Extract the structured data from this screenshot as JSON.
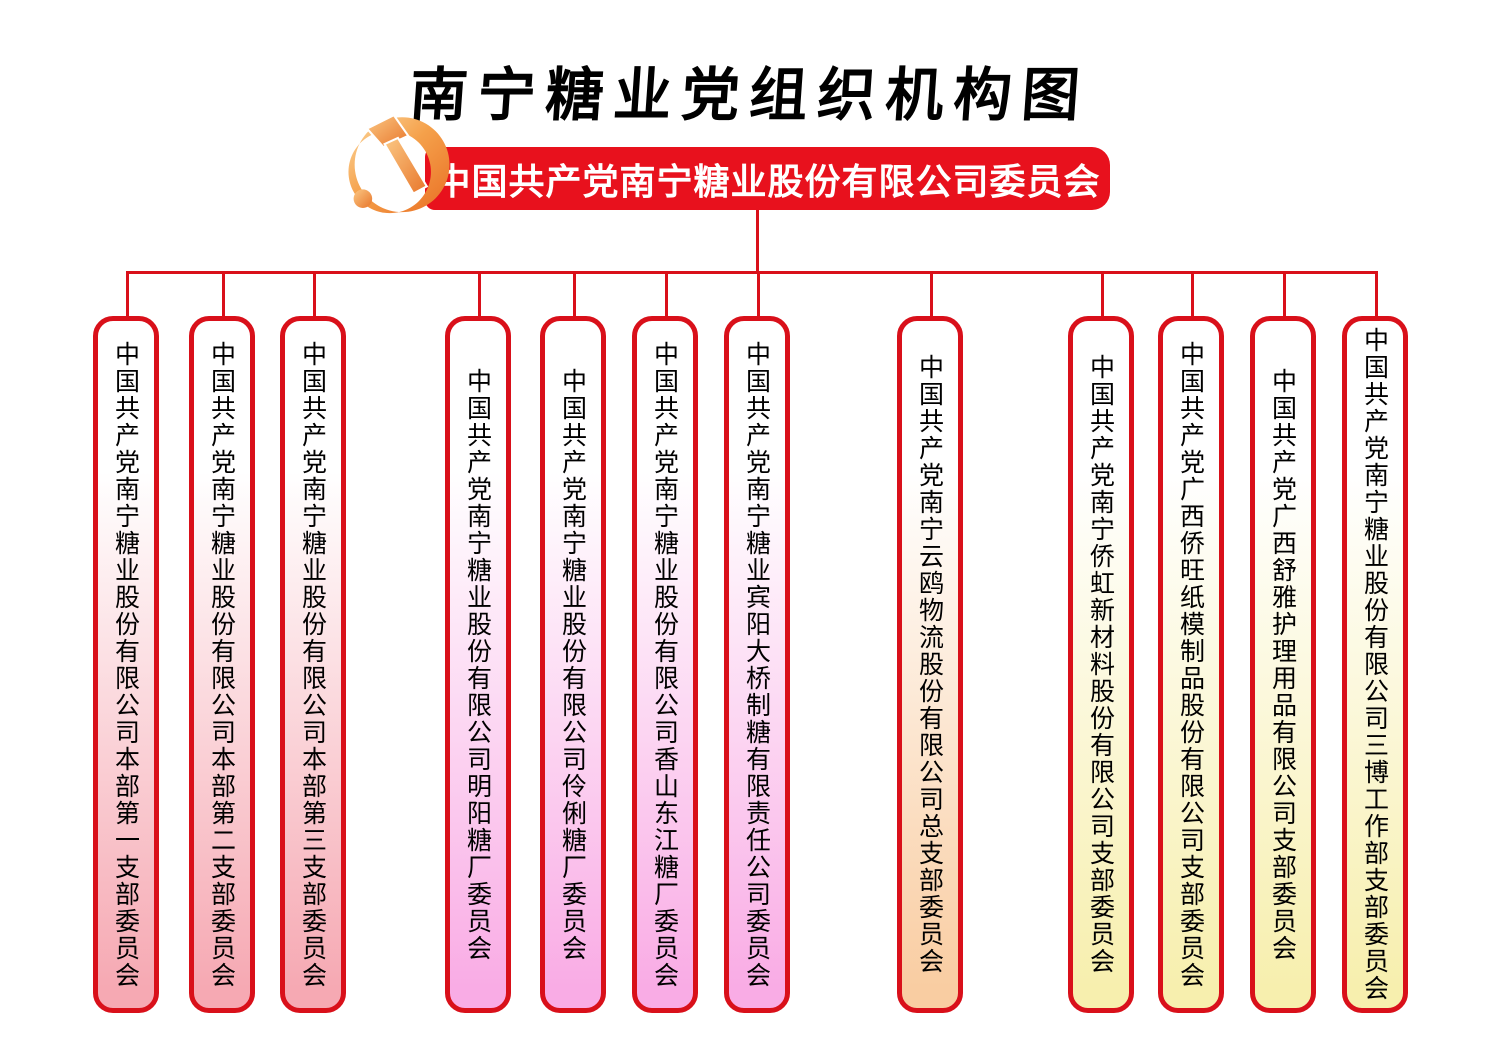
{
  "page": {
    "title": "南宁糖业党组织机构图"
  },
  "root": {
    "label": "中国共产党南宁糖业股份有限公司委员会",
    "emblem_icon": "party-emblem-icon",
    "banner_color": "#e8111d"
  },
  "colors": {
    "line_red": "#d9101a",
    "border_red": "#d9101a",
    "banner_red": "#e8111d",
    "emblem_gold_light": "#fcd9a0",
    "emblem_gold_dark": "#e96f24",
    "group_pink": "#f6a9b3",
    "group_magenta": "#f9ace5",
    "group_orange": "#f9cda2",
    "group_yellow": "#f7efae"
  },
  "units": [
    {
      "label": "中国共产党南宁糖业股份有限公司本部第一支部委员会",
      "group": "pink"
    },
    {
      "label": "中国共产党南宁糖业股份有限公司本部第二支部委员会",
      "group": "pink"
    },
    {
      "label": "中国共产党南宁糖业股份有限公司本部第三支部委员会",
      "group": "pink"
    },
    {
      "label": "中国共产党南宁糖业股份有限公司明阳糖厂委员会",
      "group": "magenta"
    },
    {
      "label": "中国共产党南宁糖业股份有限公司伶俐糖厂委员会",
      "group": "magenta"
    },
    {
      "label": "中国共产党南宁糖业股份有限公司香山东江糖厂委员会",
      "group": "magenta"
    },
    {
      "label": "中国共产党南宁糖业宾阳大桥制糖有限责任公司委员会",
      "group": "magenta"
    },
    {
      "label": "中国共产党南宁云鸥物流股份有限公司总支部委员会",
      "group": "orange"
    },
    {
      "label": "中国共产党南宁侨虹新材料股份有限公司支部委员会",
      "group": "yellow"
    },
    {
      "label": "中国共产党广西侨旺纸模制品股份有限公司支部委员会",
      "group": "yellow"
    },
    {
      "label": "中国共产党广西舒雅护理用品有限公司支部委员会",
      "group": "yellow"
    },
    {
      "label": "中国共产党南宁糖业股份有限公司三博工作部支部委员会",
      "group": "yellow"
    }
  ]
}
